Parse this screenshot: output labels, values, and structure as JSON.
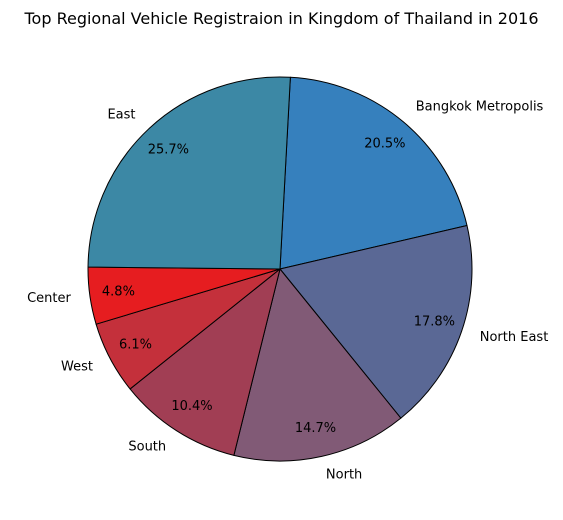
{
  "chart_data": {
    "type": "pie",
    "title": "Top Regional Vehicle Registraion in Kingdom of Thailand in 2016",
    "slices": [
      {
        "label": "Bangkok Metropolis",
        "value": 20.5,
        "pct_label": "20.5%",
        "color": "#3680bd"
      },
      {
        "label": "North East",
        "value": 17.8,
        "pct_label": "17.8%",
        "color": "#5a6895"
      },
      {
        "label": "North",
        "value": 14.7,
        "pct_label": "14.7%",
        "color": "#815a76"
      },
      {
        "label": "South",
        "value": 10.4,
        "pct_label": "10.4%",
        "color": "#a13e54"
      },
      {
        "label": "West",
        "value": 6.1,
        "pct_label": "6.1%",
        "color": "#c4303b"
      },
      {
        "label": "Center",
        "value": 4.8,
        "pct_label": "4.8%",
        "color": "#e61d20"
      },
      {
        "label": "East",
        "value": 25.7,
        "pct_label": "25.7%",
        "color": "#3c88a5"
      }
    ]
  }
}
